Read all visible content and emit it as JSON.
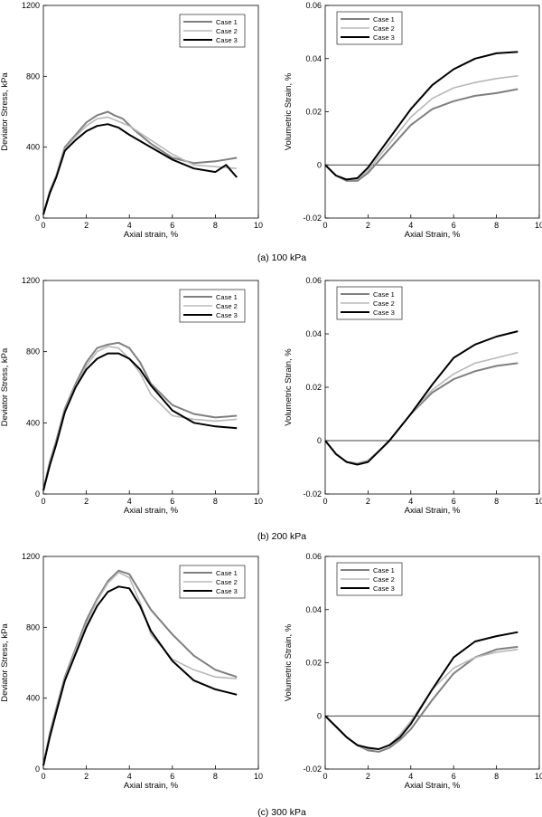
{
  "captions": [
    "(a)  100  kPa",
    "(b)  200  kPa",
    "(c)  300  kPa"
  ],
  "colors": {
    "Case 1": "#7f7f7f",
    "Case 2": "#b8b8b8",
    "Case 3": "#000000"
  },
  "chart_data": [
    {
      "type": "line",
      "row": 0,
      "col": 0,
      "xlabel": "Axial strain, %",
      "ylabel": "Deviator Stress, kPa",
      "xlim": [
        0,
        10
      ],
      "ylim": [
        0,
        1200
      ],
      "xticks": [
        0,
        2,
        4,
        6,
        8,
        10
      ],
      "yticks": [
        0,
        400,
        800,
        1200
      ],
      "legend": "top-right",
      "series": [
        {
          "name": "Case 1",
          "x": [
            0,
            0.3,
            0.6,
            1,
            1.5,
            2,
            2.5,
            3,
            3.3,
            3.7,
            4.2,
            5,
            6,
            7,
            8,
            9
          ],
          "y": [
            20,
            150,
            240,
            400,
            470,
            540,
            580,
            600,
            580,
            560,
            500,
            420,
            340,
            310,
            320,
            340
          ]
        },
        {
          "name": "Case 2",
          "x": [
            0,
            0.3,
            0.6,
            1,
            1.5,
            2,
            2.5,
            3,
            3.5,
            4,
            4.5,
            5,
            6,
            7,
            8,
            9
          ],
          "y": [
            20,
            140,
            240,
            390,
            460,
            520,
            560,
            570,
            545,
            520,
            480,
            440,
            360,
            300,
            290,
            280
          ]
        },
        {
          "name": "Case 3",
          "x": [
            0,
            0.3,
            0.6,
            1,
            1.5,
            2,
            2.5,
            3,
            3.5,
            4,
            5,
            6,
            7,
            8,
            8.5,
            9
          ],
          "y": [
            20,
            140,
            230,
            380,
            440,
            490,
            520,
            530,
            510,
            470,
            400,
            330,
            280,
            260,
            300,
            230
          ]
        }
      ]
    },
    {
      "type": "line",
      "row": 0,
      "col": 1,
      "xlabel": "Axial Strain, %",
      "ylabel": "Volumetric Strain, %",
      "xlim": [
        0,
        10
      ],
      "ylim": [
        -0.02,
        0.06
      ],
      "xticks": [
        0,
        2,
        4,
        6,
        8,
        10
      ],
      "yticks": [
        -0.02,
        0,
        0.02,
        0.04,
        0.06
      ],
      "ytick_labels": [
        "-0.02",
        "0",
        "0.02",
        "0.04",
        "0.06"
      ],
      "zero_line": true,
      "legend": "top-left",
      "series": [
        {
          "name": "Case 1",
          "x": [
            0,
            0.5,
            1,
            1.5,
            2,
            3,
            4,
            5,
            6,
            7,
            8,
            9
          ],
          "y": [
            0,
            -0.004,
            -0.006,
            -0.006,
            -0.003,
            0.006,
            0.015,
            0.021,
            0.024,
            0.026,
            0.027,
            0.0285
          ]
        },
        {
          "name": "Case 2",
          "x": [
            0,
            0.5,
            1,
            1.5,
            2,
            3,
            4,
            5,
            6,
            7,
            8,
            9
          ],
          "y": [
            0,
            -0.004,
            -0.0055,
            -0.0055,
            -0.002,
            0.008,
            0.018,
            0.025,
            0.029,
            0.031,
            0.0325,
            0.0335
          ]
        },
        {
          "name": "Case 3",
          "x": [
            0,
            0.5,
            1,
            1.5,
            2,
            3,
            4,
            5,
            6,
            7,
            8,
            9
          ],
          "y": [
            0,
            -0.004,
            -0.0055,
            -0.005,
            -0.001,
            0.01,
            0.021,
            0.03,
            0.036,
            0.04,
            0.042,
            0.0425
          ]
        }
      ]
    },
    {
      "type": "line",
      "row": 1,
      "col": 0,
      "xlabel": "Axial strain, %",
      "ylabel": "Deviator Stress, kPa",
      "xlim": [
        0,
        10
      ],
      "ylim": [
        0,
        1200
      ],
      "xticks": [
        0,
        2,
        4,
        6,
        8,
        10
      ],
      "yticks": [
        0,
        400,
        800,
        1200
      ],
      "legend": "top-right",
      "series": [
        {
          "name": "Case 1",
          "x": [
            0,
            0.3,
            0.6,
            1,
            1.5,
            2,
            2.5,
            3,
            3.5,
            4,
            4.5,
            5,
            6,
            7,
            8,
            9
          ],
          "y": [
            20,
            180,
            300,
            480,
            620,
            740,
            820,
            840,
            850,
            820,
            740,
            620,
            500,
            450,
            430,
            440
          ]
        },
        {
          "name": "Case 2",
          "x": [
            0,
            0.3,
            0.6,
            1,
            1.5,
            2,
            2.5,
            3,
            3.5,
            4,
            4.5,
            5,
            6,
            7,
            8,
            9
          ],
          "y": [
            20,
            170,
            290,
            470,
            610,
            720,
            800,
            830,
            820,
            760,
            680,
            560,
            440,
            420,
            410,
            420
          ]
        },
        {
          "name": "Case 3",
          "x": [
            0,
            0.3,
            0.6,
            1,
            1.5,
            2,
            2.5,
            3,
            3.5,
            4,
            4.5,
            5,
            6,
            7,
            8,
            9
          ],
          "y": [
            20,
            160,
            280,
            460,
            600,
            700,
            760,
            790,
            790,
            760,
            700,
            610,
            470,
            400,
            380,
            370
          ]
        }
      ]
    },
    {
      "type": "line",
      "row": 1,
      "col": 1,
      "xlabel": "Axial Strain, %",
      "ylabel": "Volumetric Strain, %",
      "xlim": [
        0,
        10
      ],
      "ylim": [
        -0.02,
        0.06
      ],
      "xticks": [
        0,
        2,
        4,
        6,
        8,
        10
      ],
      "yticks": [
        -0.02,
        0,
        0.02,
        0.04,
        0.06
      ],
      "ytick_labels": [
        "-0.02",
        "0",
        "0.02",
        "0.04",
        "0.06"
      ],
      "zero_line": true,
      "legend": "top-left",
      "series": [
        {
          "name": "Case 1",
          "x": [
            0,
            0.5,
            1,
            1.5,
            2,
            2.5,
            3,
            4,
            5,
            6,
            7,
            8,
            9
          ],
          "y": [
            0,
            -0.005,
            -0.008,
            -0.0085,
            -0.0075,
            -0.004,
            0,
            0.01,
            0.018,
            0.023,
            0.026,
            0.028,
            0.029
          ]
        },
        {
          "name": "Case 2",
          "x": [
            0,
            0.5,
            1,
            1.5,
            2,
            2.5,
            3,
            4,
            5,
            6,
            7,
            8,
            9
          ],
          "y": [
            0,
            -0.005,
            -0.008,
            -0.0085,
            -0.0075,
            -0.004,
            0,
            0.01,
            0.019,
            0.025,
            0.029,
            0.031,
            0.033
          ]
        },
        {
          "name": "Case 3",
          "x": [
            0,
            0.5,
            1,
            1.5,
            2,
            2.5,
            3,
            4,
            5,
            6,
            7,
            8,
            9
          ],
          "y": [
            0,
            -0.005,
            -0.008,
            -0.009,
            -0.008,
            -0.004,
            0,
            0.01,
            0.021,
            0.031,
            0.036,
            0.039,
            0.041
          ]
        }
      ]
    },
    {
      "type": "line",
      "row": 2,
      "col": 0,
      "xlabel": "Axial strain, %",
      "ylabel": "Deviator Stress, kPa",
      "xlim": [
        0,
        10
      ],
      "ylim": [
        0,
        1200
      ],
      "xticks": [
        0,
        2,
        4,
        6,
        8,
        10
      ],
      "yticks": [
        0,
        400,
        800,
        1200
      ],
      "legend": "top-right",
      "series": [
        {
          "name": "Case 1",
          "x": [
            0,
            0.3,
            0.6,
            1,
            1.5,
            2,
            2.5,
            3,
            3.5,
            4,
            4.5,
            5,
            6,
            7,
            8,
            9
          ],
          "y": [
            20,
            200,
            340,
            520,
            680,
            840,
            960,
            1060,
            1120,
            1100,
            1000,
            900,
            760,
            640,
            560,
            520
          ]
        },
        {
          "name": "Case 2",
          "x": [
            0,
            0.3,
            0.6,
            1,
            1.5,
            2,
            2.5,
            3,
            3.5,
            4,
            4.5,
            5,
            6,
            7,
            8,
            9
          ],
          "y": [
            20,
            190,
            330,
            510,
            670,
            820,
            950,
            1050,
            1110,
            1080,
            940,
            760,
            620,
            560,
            520,
            510
          ]
        },
        {
          "name": "Case 3",
          "x": [
            0,
            0.3,
            0.6,
            1,
            1.5,
            2,
            2.5,
            3,
            3.5,
            4,
            4.5,
            5,
            6,
            7,
            8,
            9
          ],
          "y": [
            20,
            180,
            320,
            500,
            650,
            800,
            920,
            1000,
            1030,
            1020,
            920,
            780,
            610,
            500,
            450,
            420
          ]
        }
      ]
    },
    {
      "type": "line",
      "row": 2,
      "col": 1,
      "xlabel": "Axial Strain, %",
      "ylabel": "Volumetric Strain, %",
      "xlim": [
        0,
        10
      ],
      "ylim": [
        -0.02,
        0.06
      ],
      "xticks": [
        0,
        2,
        4,
        6,
        8,
        10
      ],
      "yticks": [
        -0.02,
        0,
        0.02,
        0.04,
        0.06
      ],
      "ytick_labels": [
        "-0.02",
        "0",
        "0.02",
        "0.04",
        "0.06"
      ],
      "zero_line": true,
      "legend": "top-left",
      "series": [
        {
          "name": "Case 1",
          "x": [
            0,
            0.5,
            1,
            1.5,
            2,
            2.5,
            3,
            3.5,
            4,
            5,
            6,
            7,
            8,
            9
          ],
          "y": [
            0,
            -0.004,
            -0.008,
            -0.011,
            -0.013,
            -0.0135,
            -0.012,
            -0.009,
            -0.005,
            0.006,
            0.016,
            0.022,
            0.025,
            0.026
          ]
        },
        {
          "name": "Case 2",
          "x": [
            0,
            0.5,
            1,
            1.5,
            2,
            2.5,
            3,
            3.5,
            4,
            5,
            6,
            7,
            8,
            9
          ],
          "y": [
            0,
            -0.004,
            -0.008,
            -0.011,
            -0.0125,
            -0.0125,
            -0.011,
            -0.007,
            -0.002,
            0.01,
            0.018,
            0.022,
            0.024,
            0.025
          ]
        },
        {
          "name": "Case 3",
          "x": [
            0,
            0.5,
            1,
            1.5,
            2,
            2.5,
            3,
            3.5,
            4,
            5,
            6,
            7,
            8,
            9
          ],
          "y": [
            0,
            -0.004,
            -0.008,
            -0.011,
            -0.012,
            -0.0125,
            -0.011,
            -0.008,
            -0.003,
            0.01,
            0.022,
            0.028,
            0.03,
            0.0315
          ]
        }
      ]
    }
  ]
}
